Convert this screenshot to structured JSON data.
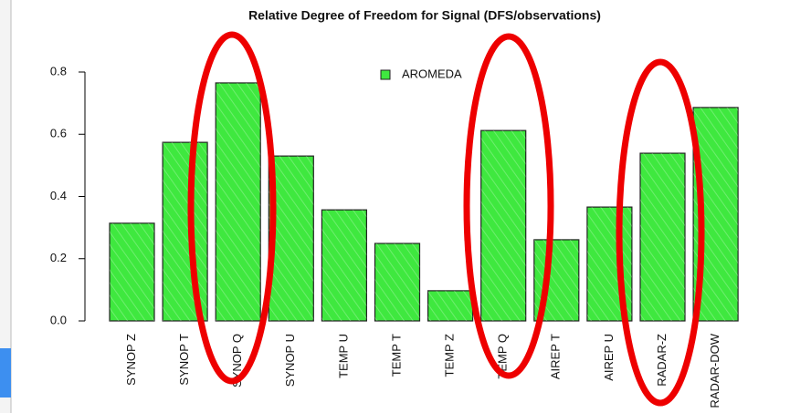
{
  "chart_data": {
    "type": "bar",
    "title": "Relative Degree of Freedom for Signal (DFS/observations)",
    "categories": [
      "SYNOP Z",
      "SYNOP T",
      "SYNOP Q",
      "SYNOP U",
      "TEMP U",
      "TEMP T",
      "TEMP Z",
      "TEMP Q",
      "AIREP T",
      "AIREP U",
      "RADAR-Z",
      "RADAR-DOW"
    ],
    "series": [
      {
        "name": "AROMEDA",
        "color": "#3fe83f",
        "values": [
          0.314,
          0.574,
          0.765,
          0.53,
          0.357,
          0.249,
          0.097,
          0.612,
          0.261,
          0.366,
          0.539,
          0.686
        ]
      }
    ],
    "ylim": [
      0,
      0.8
    ],
    "yticks": [
      {
        "value": 0,
        "label": "0.0"
      },
      0.2,
      0.4,
      0.6,
      0.8
    ],
    "legend": "top"
  }
}
